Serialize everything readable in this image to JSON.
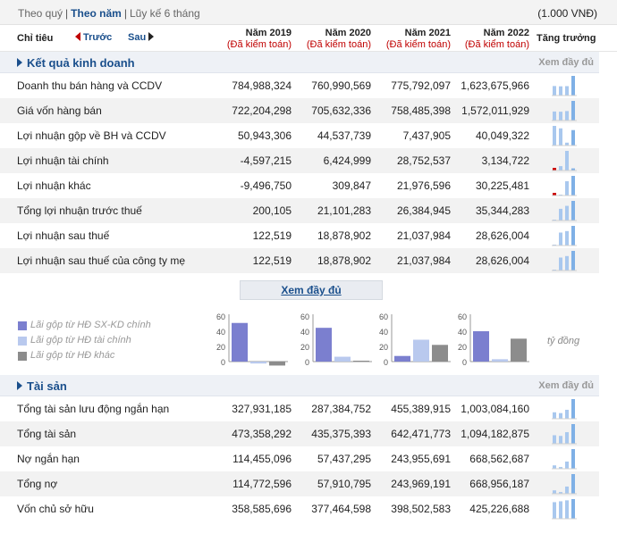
{
  "topbar": {
    "period_quarter": "Theo quý",
    "period_year": "Theo năm",
    "period_6m": "Lũy kế 6 tháng",
    "unit": "(1.000 VNĐ)"
  },
  "header": {
    "indicator_label": "Chỉ tiêu",
    "prev_label": "Trước",
    "next_label": "Sau",
    "growth_label": "Tăng trưởng",
    "years": [
      {
        "year": "Năm 2019",
        "audit": "(Đã kiểm toán)"
      },
      {
        "year": "Năm 2020",
        "audit": "(Đã kiểm toán)"
      },
      {
        "year": "Năm 2021",
        "audit": "(Đã kiểm toán)"
      },
      {
        "year": "Năm 2022",
        "audit": "(Đã kiểm toán)"
      }
    ]
  },
  "colors": {
    "accent": "#1a4f8c",
    "audit_red": "#c00000",
    "spark_light": "#a9c8ee",
    "spark_strong": "#7fb0e6",
    "spark_negative": "#cc0000",
    "chart_primary": "#7b7fcf",
    "chart_secondary": "#b9c9ee",
    "chart_other": "#8c8c8c"
  },
  "section_business": {
    "title": "Kết quả kinh doanh",
    "see_all": "Xem đầy đủ",
    "rows": [
      {
        "name": "Doanh thu bán hàng và CCDV",
        "values": [
          "784,988,324",
          "760,990,569",
          "775,792,097",
          "1,623,675,966"
        ],
        "nums": [
          784988324,
          760990569,
          775792097,
          1623675966
        ]
      },
      {
        "name": "Giá vốn hàng bán",
        "values": [
          "722,204,298",
          "705,632,336",
          "758,485,398",
          "1,572,011,929"
        ],
        "nums": [
          722204298,
          705632336,
          758485398,
          1572011929
        ]
      },
      {
        "name": "Lợi nhuận gộp về BH và CCDV",
        "values": [
          "50,943,306",
          "44,537,739",
          "7,437,905",
          "40,049,322"
        ],
        "nums": [
          50943306,
          44537739,
          7437905,
          40049322
        ]
      },
      {
        "name": "Lợi nhuận tài chính",
        "values": [
          "-4,597,215",
          "6,424,999",
          "28,752,537",
          "3,134,722"
        ],
        "nums": [
          -4597215,
          6424999,
          28752537,
          3134722
        ]
      },
      {
        "name": "Lợi nhuận khác",
        "values": [
          "-9,496,750",
          "309,847",
          "21,976,596",
          "30,225,481"
        ],
        "nums": [
          -9496750,
          309847,
          21976596,
          30225481
        ]
      },
      {
        "name": "Tổng lợi nhuận trước thuế",
        "values": [
          "200,105",
          "21,101,283",
          "26,384,945",
          "35,344,283"
        ],
        "nums": [
          200105,
          21101283,
          26384945,
          35344283
        ]
      },
      {
        "name": "Lợi nhuận sau thuế",
        "values": [
          "122,519",
          "18,878,902",
          "21,037,984",
          "28,626,004"
        ],
        "nums": [
          122519,
          18878902,
          21037984,
          28626004
        ]
      },
      {
        "name": "Lợi nhuận sau thuế của công ty mẹ",
        "values": [
          "122,519",
          "18,878,902",
          "21,037,984",
          "28,626,004"
        ],
        "nums": [
          122519,
          18878902,
          21037984,
          28626004
        ]
      }
    ]
  },
  "see_more_button": "Xem đầy đủ",
  "legend": [
    {
      "label": "Lãi gộp từ HĐ SX-KD chính",
      "color": "#7b7fcf"
    },
    {
      "label": "Lãi gộp từ HĐ tài chính",
      "color": "#b9c9ee"
    },
    {
      "label": "Lãi gộp từ HĐ khác",
      "color": "#8c8c8c"
    }
  ],
  "chart_data": {
    "type": "bar",
    "unit_label": "tỷ đồng",
    "ylim": [
      0,
      60
    ],
    "yticks": [
      "60",
      "40",
      "20",
      "0"
    ],
    "panels": [
      {
        "values": [
          50.9,
          -4.6,
          -9.5
        ]
      },
      {
        "values": [
          44.5,
          6.4,
          0.3
        ]
      },
      {
        "values": [
          7.4,
          28.8,
          22.0
        ]
      },
      {
        "values": [
          40.0,
          3.1,
          30.2
        ]
      }
    ]
  },
  "section_assets": {
    "title": "Tài sản",
    "see_all": "Xem đầy đủ",
    "rows": [
      {
        "name": "Tổng tài sản lưu động ngắn hạn",
        "values": [
          "327,931,185",
          "287,384,752",
          "455,389,915",
          "1,003,084,160"
        ],
        "nums": [
          327931185,
          287384752,
          455389915,
          1003084160
        ]
      },
      {
        "name": "Tổng tài sản",
        "values": [
          "473,358,292",
          "435,375,393",
          "642,471,773",
          "1,094,182,875"
        ],
        "nums": [
          473358292,
          435375393,
          642471773,
          1094182875
        ]
      },
      {
        "name": "Nợ ngắn hạn",
        "values": [
          "114,455,096",
          "57,437,295",
          "243,955,691",
          "668,562,687"
        ],
        "nums": [
          114455096,
          57437295,
          243955691,
          668562687
        ]
      },
      {
        "name": "Tổng nợ",
        "values": [
          "114,772,596",
          "57,910,795",
          "243,969,191",
          "668,956,187"
        ],
        "nums": [
          114772596,
          57910795,
          243969191,
          668956187
        ]
      },
      {
        "name": "Vốn chủ sở hữu",
        "values": [
          "358,585,696",
          "377,464,598",
          "398,502,583",
          "425,226,688"
        ],
        "nums": [
          358585696,
          377464598,
          398502583,
          425226688
        ]
      }
    ]
  }
}
